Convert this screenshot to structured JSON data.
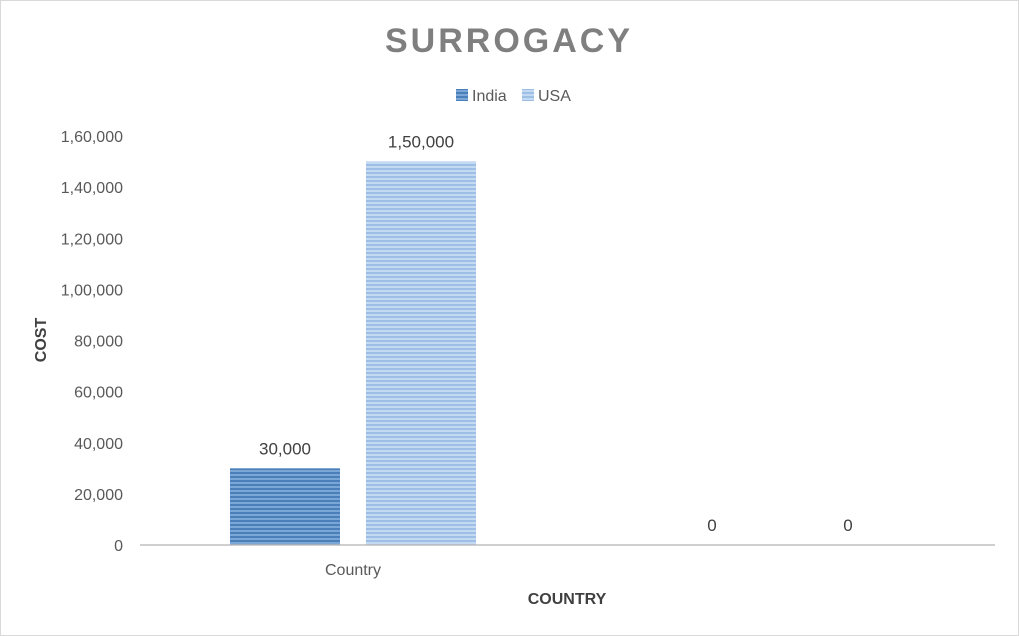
{
  "chart_data": {
    "type": "bar",
    "title": "SURROGACY",
    "xlabel": "COUNTRY",
    "ylabel": "COST",
    "categories": [
      "Country",
      ""
    ],
    "series": [
      {
        "name": "India",
        "values": [
          30000,
          0
        ],
        "data_labels": [
          "30,000",
          "0"
        ],
        "color": "#5b8ec4"
      },
      {
        "name": "USA",
        "values": [
          150000,
          0
        ],
        "data_labels": [
          "1,50,000",
          "0"
        ],
        "color": "#a9c8ea"
      }
    ],
    "ylim": [
      0,
      160000
    ],
    "yticks": [
      {
        "value": 0,
        "label": "0"
      },
      {
        "value": 20000,
        "label": "20,000"
      },
      {
        "value": 40000,
        "label": "40,000"
      },
      {
        "value": 60000,
        "label": "60,000"
      },
      {
        "value": 80000,
        "label": "80,000"
      },
      {
        "value": 100000,
        "label": "1,00,000"
      },
      {
        "value": 120000,
        "label": "1,20,000"
      },
      {
        "value": 140000,
        "label": "1,40,000"
      },
      {
        "value": 160000,
        "label": "1,60,000"
      }
    ],
    "legend_position": "top",
    "grid": false
  }
}
